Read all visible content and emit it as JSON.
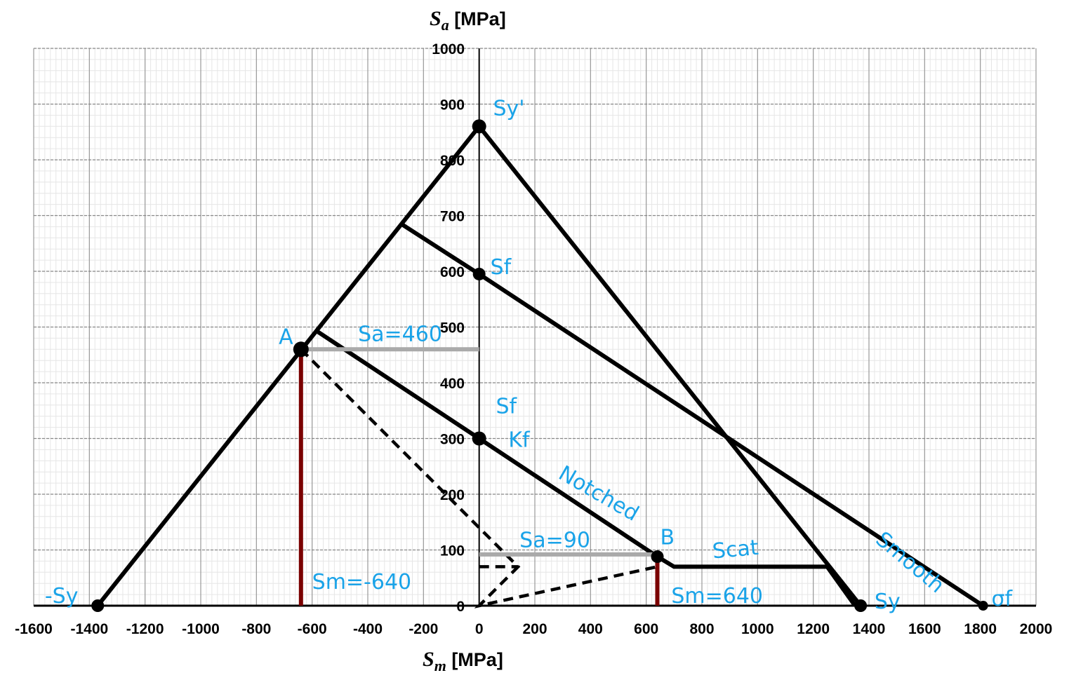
{
  "chart_data": {
    "type": "line",
    "xlabel_sym": "S",
    "xlabel_sub": "m",
    "xlabel_unit": " [MPa]",
    "ylabel_sym": "S",
    "ylabel_sub": "a",
    "ylabel_unit": " [MPa]",
    "xlim": [
      -1600,
      2000
    ],
    "ylim": [
      0,
      1000
    ],
    "xticks": [
      -1600,
      -1400,
      -1200,
      -1000,
      -800,
      -600,
      -400,
      -200,
      0,
      200,
      400,
      600,
      800,
      1000,
      1200,
      1400,
      1600,
      1800,
      2000
    ],
    "yticks": [
      0,
      100,
      200,
      300,
      400,
      500,
      600,
      700,
      800,
      900,
      1000
    ],
    "grid": true,
    "series": [
      {
        "style": "solid",
        "color": "#000000",
        "x": [
          -1370,
          0,
          1370
        ],
        "y": [
          0,
          860,
          0
        ]
      },
      {
        "style": "solid",
        "color": "#000000",
        "x": [
          -280,
          0,
          1810
        ],
        "y": [
          685,
          595,
          0
        ]
      },
      {
        "style": "solid",
        "color": "#000000",
        "x": [
          -590,
          0,
          640,
          700,
          1250,
          1350
        ],
        "y": [
          495,
          300,
          88,
          70,
          70,
          0
        ]
      },
      {
        "style": "dashed",
        "color": "#000000",
        "x": [
          -640,
          140,
          0,
          640
        ],
        "y": [
          460,
          70,
          0,
          70
        ]
      },
      {
        "style": "dashed",
        "color": "#000000",
        "x": [
          0,
          140
        ],
        "y": [
          70,
          70
        ]
      },
      {
        "style": "solid",
        "color": "#aaaaaa",
        "x": [
          -640,
          0
        ],
        "y": [
          460,
          460
        ]
      },
      {
        "style": "solid",
        "color": "#aaaaaa",
        "x": [
          0,
          640
        ],
        "y": [
          92,
          92
        ]
      },
      {
        "style": "solid",
        "color": "#7a0000",
        "x": [
          -640,
          -640
        ],
        "y": [
          0,
          460
        ]
      },
      {
        "style": "solid",
        "color": "#7a0000",
        "x": [
          640,
          640
        ],
        "y": [
          0,
          88
        ]
      }
    ],
    "points": [
      {
        "x": -1370,
        "y": 0,
        "r": 9
      },
      {
        "x": 0,
        "y": 860,
        "r": 10
      },
      {
        "x": 0,
        "y": 595,
        "r": 9
      },
      {
        "x": 0,
        "y": 300,
        "r": 10
      },
      {
        "x": -640,
        "y": 460,
        "r": 11
      },
      {
        "x": 640,
        "y": 88,
        "r": 9
      },
      {
        "x": 1370,
        "y": 0,
        "r": 9
      },
      {
        "x": 1810,
        "y": 0,
        "r": 7
      }
    ],
    "annotations": [
      {
        "text": "-Sy",
        "x": -1560,
        "y": 5,
        "rotate": 0,
        "size": 36
      },
      {
        "text": "Sy'",
        "x": 50,
        "y": 880,
        "rotate": 0,
        "size": 34
      },
      {
        "text": "Sf",
        "x": 40,
        "y": 595,
        "rotate": 0,
        "size": 34
      },
      {
        "text": "Sf",
        "x": 60,
        "y": 345,
        "rotate": 0,
        "size": 30
      },
      {
        "text": "Kf",
        "x": 105,
        "y": 285,
        "rotate": 0,
        "size": 30
      },
      {
        "text": "A",
        "x": -720,
        "y": 470,
        "rotate": 0,
        "size": 34
      },
      {
        "text": "Sa=460",
        "x": -435,
        "y": 475,
        "rotate": 0,
        "size": 34
      },
      {
        "text": "Notched",
        "x": 280,
        "y": 230,
        "rotate": 30,
        "size": 30
      },
      {
        "text": "B",
        "x": 650,
        "y": 110,
        "rotate": 0,
        "size": 34
      },
      {
        "text": "Sa=90",
        "x": 145,
        "y": 105,
        "rotate": 0,
        "size": 34
      },
      {
        "text": "Scat",
        "x": 840,
        "y": 85,
        "rotate": -5,
        "size": 30
      },
      {
        "text": "Sm=-640",
        "x": -600,
        "y": 30,
        "rotate": 0,
        "size": 34
      },
      {
        "text": "Sm=640",
        "x": 690,
        "y": 5,
        "rotate": 0,
        "size": 34
      },
      {
        "text": "Sy",
        "x": 1420,
        "y": -5,
        "rotate": 0,
        "size": 36
      },
      {
        "text": "Smooth",
        "x": 1420,
        "y": 115,
        "rotate": 40,
        "size": 30
      },
      {
        "text": "σf",
        "x": 1840,
        "y": 0,
        "rotate": 0,
        "size": 32
      }
    ]
  }
}
